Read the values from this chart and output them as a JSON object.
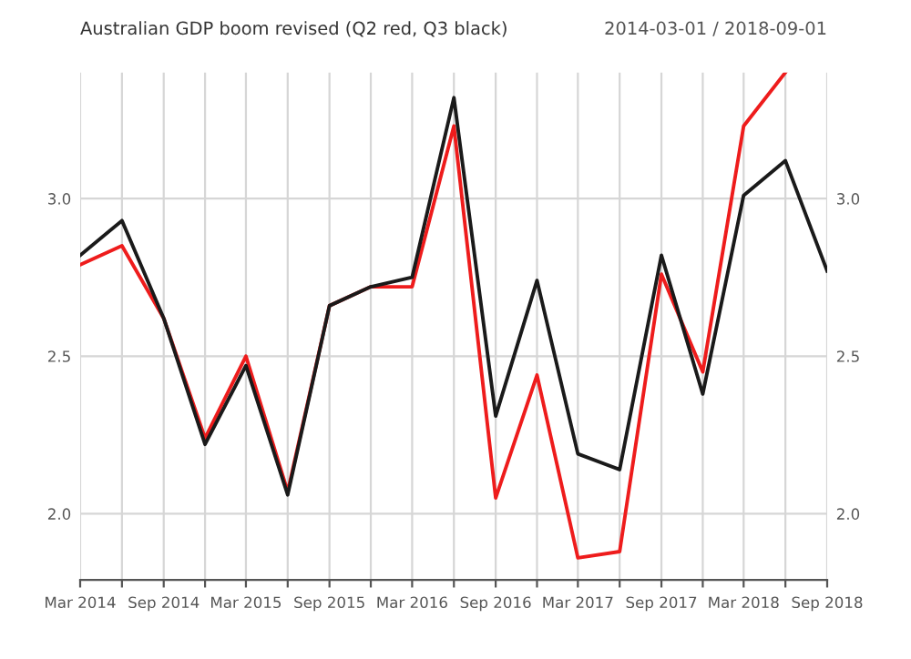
{
  "chart_data": {
    "type": "line",
    "title": "Australian GDP boom revised (Q2 red, Q3 black)",
    "subtitle": "2014-03-01 / 2018-09-01",
    "x": [
      "2014-03",
      "2014-06",
      "2014-09",
      "2014-12",
      "2015-03",
      "2015-06",
      "2015-09",
      "2015-12",
      "2016-03",
      "2016-06",
      "2016-09",
      "2016-12",
      "2017-03",
      "2017-06",
      "2017-09",
      "2017-12",
      "2018-03",
      "2018-06",
      "2018-09"
    ],
    "series": [
      {
        "color": "#ee1c1c",
        "values": [
          2.79,
          2.85,
          2.62,
          2.24,
          2.5,
          2.07,
          2.66,
          2.72,
          2.72,
          3.23,
          2.05,
          2.44,
          1.86,
          1.88,
          2.76,
          2.45,
          3.23,
          3.4,
          null
        ]
      },
      {
        "color": "#1a1a1a",
        "values": [
          2.82,
          2.93,
          2.62,
          2.22,
          2.47,
          2.06,
          2.66,
          2.72,
          2.75,
          3.32,
          2.31,
          2.74,
          2.19,
          2.14,
          2.82,
          2.38,
          3.01,
          3.12,
          2.77
        ]
      }
    ],
    "xlim": [
      "2014-03",
      "2018-09"
    ],
    "xticks": [
      {
        "value": "2014-03",
        "label": "Mar 2014"
      },
      {
        "value": "2014-06",
        "label": null
      },
      {
        "value": "2014-09",
        "label": "Sep 2014"
      },
      {
        "value": "2014-12",
        "label": null
      },
      {
        "value": "2015-03",
        "label": "Mar 2015"
      },
      {
        "value": "2015-06",
        "label": null
      },
      {
        "value": "2015-09",
        "label": "Sep 2015"
      },
      {
        "value": "2015-12",
        "label": null
      },
      {
        "value": "2016-03",
        "label": "Mar 2016"
      },
      {
        "value": "2016-06",
        "label": null
      },
      {
        "value": "2016-09",
        "label": "Sep 2016"
      },
      {
        "value": "2016-12",
        "label": null
      },
      {
        "value": "2017-03",
        "label": "Mar 2017"
      },
      {
        "value": "2017-06",
        "label": null
      },
      {
        "value": "2017-09",
        "label": "Sep 2017"
      },
      {
        "value": "2017-12",
        "label": null
      },
      {
        "value": "2018-03",
        "label": "Mar 2018"
      },
      {
        "value": "2018-06",
        "label": null
      },
      {
        "value": "2018-09",
        "label": "Sep 2018"
      }
    ],
    "ylim": [
      1.79,
      3.4
    ],
    "yticks": [
      {
        "value": 2,
        "label": "2.0"
      },
      {
        "value": 2.5,
        "label": "2.5"
      },
      {
        "value": 3,
        "label": "3.0"
      }
    ],
    "y2lim": [
      1.79,
      3.4
    ],
    "y2ticks": [
      {
        "value": 2,
        "label": "2.0"
      },
      {
        "value": 2.5,
        "label": "2.5"
      },
      {
        "value": 3,
        "label": "3.0"
      }
    ],
    "grid": true,
    "marker": "none",
    "line_style": "solid"
  }
}
